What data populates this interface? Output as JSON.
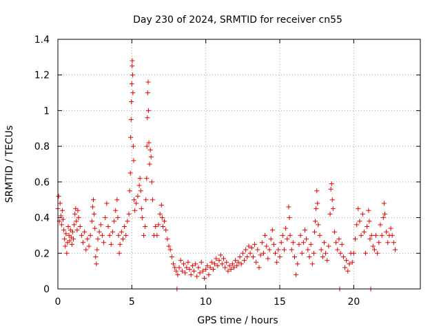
{
  "chart_data": {
    "type": "scatter",
    "title": "Day 230 of 2024, SRMTID for receiver cn55",
    "xlabel": "GPS time / hours",
    "ylabel": "SRMTID / TECUs",
    "xlim": [
      0,
      24.5
    ],
    "ylim": [
      0,
      1.4
    ],
    "xticks": [
      0,
      5,
      10,
      15,
      20
    ],
    "xtick_labels": [
      "0",
      "5",
      "10",
      "15",
      "20"
    ],
    "yticks": [
      0,
      0.2,
      0.4,
      0.6,
      0.8,
      1.0,
      1.2,
      1.4
    ],
    "ytick_labels": [
      "0",
      "0.2",
      "0.4",
      "0.6",
      "0.8",
      "1",
      "1.2",
      "1.4"
    ],
    "grid": true,
    "marker": "plus",
    "color": "#e60000",
    "series": [
      {
        "name": "cn55",
        "points": [
          [
            0.0,
            0.45
          ],
          [
            0.05,
            0.52
          ],
          [
            0.1,
            0.38
          ],
          [
            0.15,
            0.48
          ],
          [
            0.2,
            0.41
          ],
          [
            0.25,
            0.36
          ],
          [
            0.3,
            0.44
          ],
          [
            0.35,
            0.39
          ],
          [
            0.4,
            0.33
          ],
          [
            0.45,
            0.28
          ],
          [
            0.5,
            0.24
          ],
          [
            0.55,
            0.31
          ],
          [
            0.6,
            0.2
          ],
          [
            0.65,
            0.26
          ],
          [
            0.7,
            0.35
          ],
          [
            0.75,
            0.3
          ],
          [
            0.8,
            0.27
          ],
          [
            0.85,
            0.33
          ],
          [
            0.9,
            0.29
          ],
          [
            0.95,
            0.25
          ],
          [
            1.0,
            0.32
          ],
          [
            1.05,
            0.28
          ],
          [
            1.1,
            0.36
          ],
          [
            1.15,
            0.42
          ],
          [
            1.2,
            0.45
          ],
          [
            1.25,
            0.38
          ],
          [
            1.3,
            0.33
          ],
          [
            1.35,
            0.44
          ],
          [
            1.4,
            0.4
          ],
          [
            1.5,
            0.35
          ],
          [
            1.6,
            0.3
          ],
          [
            1.7,
            0.26
          ],
          [
            1.8,
            0.32
          ],
          [
            1.9,
            0.22
          ],
          [
            2.0,
            0.28
          ],
          [
            2.1,
            0.24
          ],
          [
            2.2,
            0.3
          ],
          [
            2.3,
            0.38
          ],
          [
            2.35,
            0.46
          ],
          [
            2.4,
            0.5
          ],
          [
            2.45,
            0.42
          ],
          [
            2.5,
            0.34
          ],
          [
            2.55,
            0.18
          ],
          [
            2.6,
            0.14
          ],
          [
            2.65,
            0.22
          ],
          [
            2.7,
            0.28
          ],
          [
            2.8,
            0.32
          ],
          [
            2.9,
            0.36
          ],
          [
            3.0,
            0.3
          ],
          [
            3.1,
            0.26
          ],
          [
            3.2,
            0.4
          ],
          [
            3.3,
            0.48
          ],
          [
            3.4,
            0.35
          ],
          [
            3.5,
            0.3
          ],
          [
            3.6,
            0.25
          ],
          [
            3.7,
            0.32
          ],
          [
            3.8,
            0.38
          ],
          [
            3.9,
            0.44
          ],
          [
            4.0,
            0.5
          ],
          [
            4.05,
            0.4
          ],
          [
            4.1,
            0.3
          ],
          [
            4.15,
            0.2
          ],
          [
            4.2,
            0.25
          ],
          [
            4.3,
            0.32
          ],
          [
            4.4,
            0.28
          ],
          [
            4.5,
            0.35
          ],
          [
            4.6,
            0.3
          ],
          [
            4.7,
            0.38
          ],
          [
            4.8,
            0.42
          ],
          [
            4.85,
            0.55
          ],
          [
            4.9,
            0.65
          ],
          [
            4.92,
            0.85
          ],
          [
            4.95,
            0.95
          ],
          [
            4.97,
            1.05
          ],
          [
            5.0,
            1.15
          ],
          [
            5.02,
            1.25
          ],
          [
            5.03,
            1.28
          ],
          [
            5.05,
            1.2
          ],
          [
            5.07,
            1.1
          ],
          [
            5.1,
            0.8
          ],
          [
            5.12,
            0.72
          ],
          [
            5.15,
            0.5
          ],
          [
            5.2,
            0.44
          ],
          [
            5.3,
            0.48
          ],
          [
            5.4,
            0.52
          ],
          [
            5.5,
            0.58
          ],
          [
            5.55,
            0.62
          ],
          [
            5.6,
            0.55
          ],
          [
            5.65,
            0.45
          ],
          [
            5.7,
            0.4
          ],
          [
            5.8,
            0.3
          ],
          [
            5.9,
            0.35
          ],
          [
            5.95,
            0.5
          ],
          [
            6.0,
            0.62
          ],
          [
            6.02,
            0.8
          ],
          [
            6.05,
            0.96
          ],
          [
            6.07,
            1.1
          ],
          [
            6.1,
            1.16
          ],
          [
            6.12,
            1.0
          ],
          [
            6.15,
            0.82
          ],
          [
            6.2,
            0.7
          ],
          [
            6.25,
            0.78
          ],
          [
            6.3,
            0.74
          ],
          [
            6.35,
            0.6
          ],
          [
            6.4,
            0.5
          ],
          [
            6.5,
            0.3
          ],
          [
            6.6,
            0.35
          ],
          [
            6.7,
            0.3
          ],
          [
            6.8,
            0.36
          ],
          [
            6.9,
            0.42
          ],
          [
            7.0,
            0.47
          ],
          [
            7.05,
            0.4
          ],
          [
            7.1,
            0.35
          ],
          [
            7.2,
            0.38
          ],
          [
            7.3,
            0.33
          ],
          [
            7.4,
            0.28
          ],
          [
            7.5,
            0.24
          ],
          [
            7.6,
            0.22
          ],
          [
            7.7,
            0.18
          ],
          [
            7.8,
            0.14
          ],
          [
            7.9,
            0.12
          ],
          [
            8.0,
            0.1
          ],
          [
            8.05,
            0.0
          ],
          [
            8.1,
            0.08
          ],
          [
            8.2,
            0.12
          ],
          [
            8.3,
            0.16
          ],
          [
            8.4,
            0.1
          ],
          [
            8.5,
            0.14
          ],
          [
            8.6,
            0.09
          ],
          [
            8.7,
            0.12
          ],
          [
            8.8,
            0.15
          ],
          [
            8.9,
            0.11
          ],
          [
            9.0,
            0.08
          ],
          [
            9.1,
            0.13
          ],
          [
            9.2,
            0.1
          ],
          [
            9.3,
            0.14
          ],
          [
            9.4,
            0.07
          ],
          [
            9.5,
            0.12
          ],
          [
            9.6,
            0.09
          ],
          [
            9.7,
            0.15
          ],
          [
            9.8,
            0.1
          ],
          [
            9.9,
            0.06
          ],
          [
            10.0,
            0.11
          ],
          [
            10.1,
            0.13
          ],
          [
            10.2,
            0.08
          ],
          [
            10.3,
            0.12
          ],
          [
            10.4,
            0.15
          ],
          [
            10.5,
            0.11
          ],
          [
            10.6,
            0.14
          ],
          [
            10.7,
            0.17
          ],
          [
            10.8,
            0.13
          ],
          [
            10.9,
            0.16
          ],
          [
            11.0,
            0.19
          ],
          [
            11.1,
            0.14
          ],
          [
            11.2,
            0.17
          ],
          [
            11.3,
            0.12
          ],
          [
            11.4,
            0.15
          ],
          [
            11.5,
            0.1
          ],
          [
            11.6,
            0.13
          ],
          [
            11.7,
            0.11
          ],
          [
            11.8,
            0.14
          ],
          [
            11.9,
            0.12
          ],
          [
            12.0,
            0.16
          ],
          [
            12.1,
            0.13
          ],
          [
            12.2,
            0.15
          ],
          [
            12.3,
            0.18
          ],
          [
            12.4,
            0.14
          ],
          [
            12.5,
            0.2
          ],
          [
            12.6,
            0.16
          ],
          [
            12.7,
            0.22
          ],
          [
            12.8,
            0.18
          ],
          [
            12.9,
            0.24
          ],
          [
            13.0,
            0.2
          ],
          [
            13.1,
            0.23
          ],
          [
            13.2,
            0.18
          ],
          [
            13.3,
            0.25
          ],
          [
            13.4,
            0.15
          ],
          [
            13.5,
            0.22
          ],
          [
            13.6,
            0.12
          ],
          [
            13.7,
            0.19
          ],
          [
            13.8,
            0.26
          ],
          [
            13.9,
            0.2
          ],
          [
            14.0,
            0.3
          ],
          [
            14.1,
            0.24
          ],
          [
            14.2,
            0.17
          ],
          [
            14.3,
            0.22
          ],
          [
            14.4,
            0.28
          ],
          [
            14.5,
            0.33
          ],
          [
            14.6,
            0.25
          ],
          [
            14.7,
            0.2
          ],
          [
            14.8,
            0.15
          ],
          [
            14.9,
            0.22
          ],
          [
            15.0,
            0.18
          ],
          [
            15.1,
            0.26
          ],
          [
            15.2,
            0.3
          ],
          [
            15.3,
            0.22
          ],
          [
            15.4,
            0.34
          ],
          [
            15.5,
            0.28
          ],
          [
            15.6,
            0.46
          ],
          [
            15.65,
            0.4
          ],
          [
            15.7,
            0.3
          ],
          [
            15.8,
            0.22
          ],
          [
            15.9,
            0.26
          ],
          [
            16.0,
            0.18
          ],
          [
            16.1,
            0.08
          ],
          [
            16.2,
            0.14
          ],
          [
            16.3,
            0.25
          ],
          [
            16.4,
            0.3
          ],
          [
            16.5,
            0.2
          ],
          [
            16.6,
            0.26
          ],
          [
            16.7,
            0.33
          ],
          [
            16.8,
            0.28
          ],
          [
            16.9,
            0.22
          ],
          [
            17.0,
            0.18
          ],
          [
            17.1,
            0.25
          ],
          [
            17.2,
            0.14
          ],
          [
            17.3,
            0.2
          ],
          [
            17.35,
            0.32
          ],
          [
            17.4,
            0.38
          ],
          [
            17.45,
            0.45
          ],
          [
            17.5,
            0.55
          ],
          [
            17.55,
            0.48
          ],
          [
            17.6,
            0.36
          ],
          [
            17.7,
            0.3
          ],
          [
            17.8,
            0.22
          ],
          [
            17.9,
            0.18
          ],
          [
            18.0,
            0.26
          ],
          [
            18.1,
            0.2
          ],
          [
            18.2,
            0.16
          ],
          [
            18.3,
            0.24
          ],
          [
            18.4,
            0.42
          ],
          [
            18.45,
            0.56
          ],
          [
            18.5,
            0.59
          ],
          [
            18.55,
            0.5
          ],
          [
            18.6,
            0.45
          ],
          [
            18.7,
            0.32
          ],
          [
            18.8,
            0.26
          ],
          [
            18.9,
            0.22
          ],
          [
            19.0,
            0.28
          ],
          [
            19.05,
            0.0
          ],
          [
            19.1,
            0.2
          ],
          [
            19.2,
            0.25
          ],
          [
            19.3,
            0.18
          ],
          [
            19.4,
            0.12
          ],
          [
            19.5,
            0.16
          ],
          [
            19.6,
            0.1
          ],
          [
            19.7,
            0.14
          ],
          [
            19.8,
            0.2
          ],
          [
            19.9,
            0.15
          ],
          [
            20.0,
            0.2
          ],
          [
            20.1,
            0.28
          ],
          [
            20.2,
            0.36
          ],
          [
            20.3,
            0.45
          ],
          [
            20.4,
            0.38
          ],
          [
            20.5,
            0.3
          ],
          [
            20.6,
            0.42
          ],
          [
            20.7,
            0.32
          ],
          [
            20.8,
            0.2
          ],
          [
            20.9,
            0.35
          ],
          [
            21.0,
            0.44
          ],
          [
            21.05,
            0.38
          ],
          [
            21.1,
            0.28
          ],
          [
            21.15,
            0.0
          ],
          [
            21.2,
            0.3
          ],
          [
            21.3,
            0.24
          ],
          [
            21.4,
            0.22
          ],
          [
            21.5,
            0.3
          ],
          [
            21.6,
            0.2
          ],
          [
            21.7,
            0.26
          ],
          [
            21.8,
            0.36
          ],
          [
            21.9,
            0.3
          ],
          [
            22.0,
            0.4
          ],
          [
            22.05,
            0.48
          ],
          [
            22.1,
            0.42
          ],
          [
            22.2,
            0.32
          ],
          [
            22.3,
            0.26
          ],
          [
            22.4,
            0.3
          ],
          [
            22.5,
            0.34
          ],
          [
            22.6,
            0.3
          ],
          [
            22.7,
            0.26
          ],
          [
            22.8,
            0.22
          ]
        ]
      }
    ]
  }
}
